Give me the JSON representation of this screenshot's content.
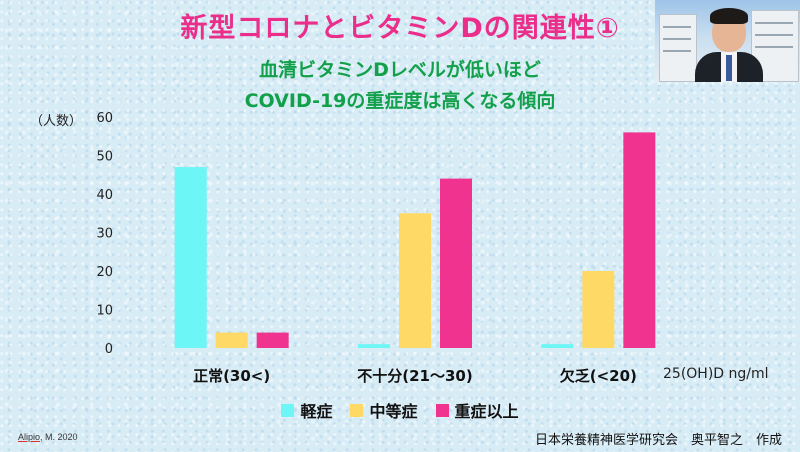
{
  "slide": {
    "title": "新型コロナとビタミンDの関連性①",
    "subtitle_line1": "血清ビタミンDレベルが低いほど",
    "subtitle_line2": "COVID-19の重症度は高くなる傾向",
    "citation_author": "Alipio",
    "citation_rest": ", M. 2020",
    "credit": "日本栄養精神医学研究会　奥平智之　作成"
  },
  "chart_data": {
    "type": "bar",
    "ylabel": "（人数）",
    "xlabel": "25(OH)D ng/ml",
    "ylim": [
      0,
      60
    ],
    "yticks": [
      0,
      10,
      20,
      30,
      40,
      50,
      60
    ],
    "categories": [
      "正常(30<)",
      "不十分(21～30)",
      "欠乏(<20)"
    ],
    "series": [
      {
        "name": "軽症",
        "color": "#6df6f6",
        "values": [
          47,
          1,
          1
        ]
      },
      {
        "name": "中等症",
        "color": "#ffd966",
        "values": [
          4,
          35,
          20
        ]
      },
      {
        "name": "重症以上",
        "color": "#f0338e",
        "values": [
          4,
          44,
          56
        ]
      }
    ],
    "legend_position": "bottom",
    "grid": false
  }
}
